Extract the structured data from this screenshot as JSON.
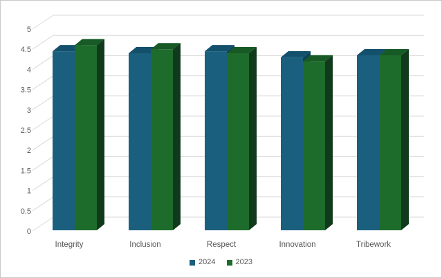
{
  "chart_data": {
    "type": "bar",
    "style": "3d-clustered-column",
    "title": "",
    "xlabel": "",
    "ylabel": "",
    "categories": [
      "Integrity",
      "Inclusion",
      "Respect",
      "Innovation",
      "Tribework"
    ],
    "series": [
      {
        "name": "2024",
        "values": [
          4.45,
          4.4,
          4.45,
          4.3,
          4.35
        ],
        "color_front": "#1B5F7E",
        "color_top": "#13506C",
        "color_side": "#0F415A"
      },
      {
        "name": "2023",
        "values": [
          4.6,
          4.5,
          4.4,
          4.2,
          4.35
        ],
        "color_front": "#1E6C2C",
        "color_top": "#175A26",
        "color_side": "#11391B"
      }
    ],
    "ylim": [
      0,
      5
    ],
    "ytick_step": 0.5,
    "ytick_labels": [
      "0",
      "0.5",
      "1",
      "1.5",
      "2",
      "2.5",
      "3",
      "3.5",
      "4",
      "4.5",
      "5"
    ],
    "grid": true,
    "legend_position": "bottom",
    "colors": {
      "gridline": "#D9D9D9",
      "axis_text": "#595959",
      "background": "#FFFFFF",
      "frame_border": "#C9C9C9"
    }
  }
}
